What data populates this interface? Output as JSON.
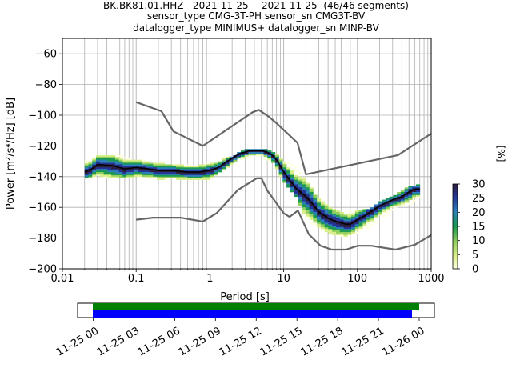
{
  "title": {
    "line1": "BK.BK81.01.HHZ   2021-11-25 -- 2021-11-25  (46/46 segments)",
    "line2": "sensor_type CMG-3T-PH sensor_sn CMG3T-BV",
    "line3": "datalogger_type MINIMUS+ datalogger_sn MINP-BV"
  },
  "colorbar": {
    "label": "[%]",
    "ticks": [
      "0",
      "5",
      "10",
      "15",
      "20",
      "25",
      "30"
    ],
    "range": [
      0,
      30
    ],
    "colormap": [
      "#ffffe0",
      "#d9ef8b",
      "#91cf60",
      "#1a9850",
      "#2c7fb8",
      "#253494",
      "#2d1e3e"
    ]
  },
  "timeline": {
    "ticks": [
      "11-25 00",
      "11-25 03",
      "11-25 06",
      "11-25 09",
      "11-25 12",
      "11-25 15",
      "11-25 18",
      "11-25 21",
      "11-26 00"
    ],
    "data_bar_color": "#008000",
    "used_bar_color": "#0000ff"
  },
  "chart_data": {
    "type": "heatmap",
    "title": "BK.BK81.01.HHZ   2021-11-25 -- 2021-11-25  (46/46 segments)",
    "xlabel": "Period [s]",
    "ylabel": "Power [m²/s⁴/Hz] [dB]",
    "xscale": "log",
    "xlim": [
      0.01,
      1000
    ],
    "ylim": [
      -200,
      -50
    ],
    "xticks": [
      "0.01",
      "0.1",
      "1",
      "10",
      "100",
      "1000"
    ],
    "yticks": [
      "−60",
      "−80",
      "−100",
      "−120",
      "−140",
      "−160",
      "−180",
      "−200"
    ],
    "grid": true,
    "series": [
      {
        "role": "mean",
        "color": "#000000",
        "x": [
          0.02,
          0.025,
          0.03,
          0.05,
          0.07,
          0.1,
          0.15,
          0.2,
          0.3,
          0.5,
          0.7,
          1.0,
          1.3,
          1.6,
          2.0,
          2.5,
          3.0,
          3.5,
          4.0,
          5.0,
          6.0,
          7.0,
          8.0,
          9.0,
          10,
          12,
          15,
          20,
          25,
          30,
          40,
          50,
          60,
          70,
          80,
          100,
          120,
          150,
          200,
          300,
          400,
          500,
          600,
          700
        ],
        "y": [
          -137,
          -135,
          -132,
          -133,
          -135,
          -134,
          -135,
          -136,
          -136,
          -137,
          -137,
          -136,
          -134,
          -131,
          -128,
          -125,
          -124,
          -123,
          -123,
          -123,
          -124,
          -126,
          -129,
          -133,
          -137,
          -142,
          -148,
          -153,
          -158,
          -163,
          -167,
          -169,
          -170,
          -171,
          -171,
          -168,
          -166,
          -163,
          -159,
          -155,
          -153,
          -150,
          -148,
          -148
        ]
      },
      {
        "role": "nhnm",
        "color": "#666666",
        "x": [
          0.1,
          0.22,
          0.32,
          0.8,
          3.8,
          4.6,
          6.3,
          7.9,
          15.4,
          20,
          354.8,
          1000
        ],
        "y": [
          -91.5,
          -97.4,
          -110.5,
          -120,
          -98,
          -96.5,
          -101,
          -105,
          -118,
          -138.5,
          -126,
          -112
        ]
      },
      {
        "role": "nlnm",
        "color": "#666666",
        "x": [
          0.1,
          0.17,
          0.4,
          0.8,
          1.24,
          2.4,
          4.3,
          5.0,
          6.0,
          10,
          12,
          15.6,
          21.9,
          31.6,
          45,
          70,
          101,
          154,
          328,
          600,
          1000
        ],
        "y": [
          -168,
          -166.7,
          -166.7,
          -169.2,
          -163.7,
          -148.6,
          -141.1,
          -141.1,
          -149,
          -163.8,
          -166.2,
          -162.1,
          -177.5,
          -185,
          -187.5,
          -187.5,
          -185,
          -185,
          -187.5,
          -184.4,
          -178
        ]
      }
    ],
    "density_envelope": {
      "x": [
        0.02,
        0.03,
        0.05,
        0.1,
        0.2,
        0.5,
        1.0,
        2.0,
        3.0,
        5.0,
        8.0,
        10,
        15,
        20,
        30,
        50,
        70,
        100,
        150,
        200,
        300,
        500,
        700
      ],
      "upper": [
        -128,
        -126,
        -124,
        -128,
        -130,
        -132,
        -130,
        -126,
        -122,
        -121,
        -124,
        -128,
        -133,
        -142,
        -154,
        -160,
        -162,
        -162,
        -160,
        -156,
        -152,
        -146,
        -144
      ],
      "lower": [
        -140,
        -140,
        -141,
        -140,
        -141,
        -142,
        -141,
        -132,
        -128,
        -126,
        -134,
        -143,
        -153,
        -168,
        -174,
        -178,
        -178,
        -176,
        -173,
        -167,
        -161,
        -158,
        -154
      ]
    }
  }
}
